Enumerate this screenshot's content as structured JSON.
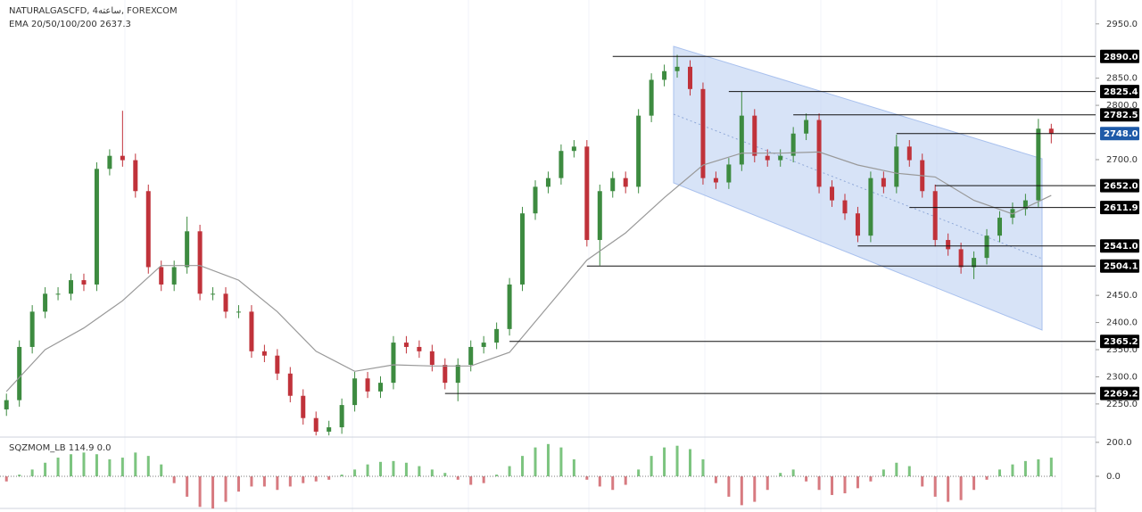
{
  "chart_data": [
    {
      "type": "candlestick",
      "title": "NATURALGASCFD, 4ساعته, FOREXCOM",
      "subtitle": "EMA 20/50/100/200  2637.3",
      "xlim": [
        -0.5,
        82.5
      ],
      "ylim": [
        2189,
        2994
      ],
      "yticks": [
        {
          "value": 2950,
          "label": "2950.0"
        },
        {
          "value": 2850,
          "label": "2850.0"
        },
        {
          "value": 2800,
          "label": "2800.0"
        },
        {
          "value": 2700,
          "label": "2700.0"
        },
        {
          "value": 2450,
          "label": "2450.0"
        },
        {
          "value": 2400,
          "label": "2400.0"
        },
        {
          "value": 2350,
          "label": "2350.0"
        },
        {
          "value": 2300,
          "label": "2300.0"
        },
        {
          "value": 2250,
          "label": "2250.0"
        }
      ],
      "up_color": "#3d8b40",
      "down_color": "#c0323a",
      "open": [
        2240,
        2257,
        2355,
        2420,
        2453,
        2453,
        2478,
        2470,
        2683,
        2707,
        2699,
        2642,
        2502,
        2470,
        2502,
        2568,
        2453,
        2453,
        2420,
        2420,
        2347,
        2339,
        2306,
        2265,
        2224,
        2199,
        2207,
        2248,
        2297,
        2273,
        2289,
        2363,
        2355,
        2347,
        2322,
        2289,
        2322,
        2355,
        2363,
        2388,
        2470,
        2601,
        2650,
        2666,
        2716,
        2724,
        2552,
        2642,
        2666,
        2650,
        2781,
        2847,
        2863,
        2871,
        2830,
        2666,
        2658,
        2691,
        2781,
        2707,
        2699,
        2707,
        2748,
        2773,
        2650,
        2625,
        2601,
        2560,
        2666,
        2650,
        2724,
        2699,
        2642,
        2552,
        2535,
        2502,
        2519,
        2560,
        2593,
        2609,
        2625,
        2757
      ],
      "high": [
        2269,
        2367,
        2432,
        2465,
        2465,
        2490,
        2490,
        2695,
        2719,
        2790,
        2711,
        2654,
        2514,
        2514,
        2595,
        2580,
        2465,
        2465,
        2432,
        2432,
        2359,
        2351,
        2318,
        2277,
        2236,
        2219,
        2260,
        2309,
        2309,
        2301,
        2375,
        2375,
        2367,
        2359,
        2334,
        2334,
        2367,
        2375,
        2400,
        2482,
        2613,
        2662,
        2678,
        2728,
        2736,
        2736,
        2654,
        2678,
        2678,
        2793,
        2859,
        2875,
        2893,
        2883,
        2842,
        2678,
        2703,
        2826,
        2793,
        2719,
        2719,
        2760,
        2785,
        2785,
        2662,
        2637,
        2613,
        2678,
        2678,
        2746,
        2736,
        2711,
        2654,
        2564,
        2547,
        2531,
        2572,
        2605,
        2621,
        2637,
        2775,
        2766
      ],
      "low": [
        2228,
        2245,
        2343,
        2408,
        2441,
        2441,
        2458,
        2458,
        2671,
        2687,
        2630,
        2490,
        2458,
        2458,
        2490,
        2441,
        2441,
        2408,
        2408,
        2335,
        2327,
        2294,
        2253,
        2212,
        2192,
        2192,
        2195,
        2236,
        2261,
        2261,
        2277,
        2343,
        2335,
        2310,
        2277,
        2255,
        2310,
        2343,
        2351,
        2376,
        2458,
        2589,
        2638,
        2654,
        2704,
        2540,
        2505,
        2630,
        2638,
        2638,
        2769,
        2835,
        2851,
        2818,
        2654,
        2646,
        2646,
        2679,
        2695,
        2687,
        2687,
        2695,
        2736,
        2638,
        2613,
        2589,
        2548,
        2548,
        2638,
        2638,
        2687,
        2630,
        2540,
        2523,
        2490,
        2480,
        2507,
        2548,
        2581,
        2597,
        2613,
        2730
      ],
      "close": [
        2257,
        2355,
        2420,
        2453,
        2453,
        2478,
        2470,
        2683,
        2707,
        2699,
        2642,
        2502,
        2470,
        2502,
        2568,
        2453,
        2453,
        2420,
        2420,
        2347,
        2339,
        2306,
        2265,
        2224,
        2199,
        2207,
        2248,
        2297,
        2273,
        2289,
        2363,
        2355,
        2347,
        2322,
        2289,
        2322,
        2355,
        2363,
        2388,
        2470,
        2601,
        2650,
        2666,
        2716,
        2724,
        2552,
        2642,
        2666,
        2650,
        2781,
        2847,
        2863,
        2871,
        2830,
        2666,
        2658,
        2691,
        2781,
        2707,
        2699,
        2707,
        2748,
        2773,
        2650,
        2625,
        2601,
        2560,
        2666,
        2650,
        2724,
        2699,
        2642,
        2552,
        2535,
        2502,
        2519,
        2560,
        2593,
        2609,
        2625,
        2757,
        2748
      ],
      "ema": {
        "color": "#999999",
        "x": [
          0,
          3,
          6,
          9,
          12,
          15,
          18,
          21,
          24,
          27,
          30,
          33,
          36,
          39,
          42,
          45,
          48,
          51,
          54,
          57,
          60,
          63,
          66,
          69,
          72,
          75,
          78,
          81
        ],
        "values": [
          2273,
          2350,
          2390,
          2440,
          2505,
          2505,
          2478,
          2420,
          2347,
          2310,
          2322,
          2320,
          2320,
          2345,
          2430,
          2515,
          2565,
          2630,
          2690,
          2712,
          2712,
          2714,
          2690,
          2675,
          2668,
          2625,
          2600,
          2634
        ]
      },
      "levels": [
        {
          "value": 2890.0,
          "label": "2890.0",
          "x": 47,
          "color": "#000000"
        },
        {
          "value": 2825.4,
          "label": "2825.4",
          "x": 56,
          "color": "#000000"
        },
        {
          "value": 2782.5,
          "label": "2782.5",
          "x": 61,
          "color": "#000000"
        },
        {
          "value": 2748.0,
          "label": "2748.0",
          "x": 69,
          "color": "#1e5aa8"
        },
        {
          "value": 2652.0,
          "label": "2652.0",
          "x": 72,
          "color": "#000000"
        },
        {
          "value": 2611.9,
          "label": "2611.9",
          "x": 70,
          "color": "#000000"
        },
        {
          "value": 2541.0,
          "label": "2541.0",
          "x": 66,
          "color": "#000000"
        },
        {
          "value": 2504.1,
          "label": "2504.1",
          "x": 45,
          "color": "#000000"
        },
        {
          "value": 2365.2,
          "label": "2365.2",
          "x": 39,
          "color": "#000000"
        },
        {
          "value": 2269.2,
          "label": "2269.2",
          "x": 34,
          "color": "#000000"
        }
      ]
    },
    {
      "type": "histogram-indicator",
      "title": "SQZMOM_LB  114.9  0.0",
      "ylim": [
        -189,
        231
      ],
      "yticks": [
        {
          "value": 200,
          "label": "200.0"
        },
        {
          "value": 0,
          "label": "0.0"
        }
      ],
      "pos_color": "#7cc47f",
      "neg_color": "#d77a80",
      "values": [
        -30,
        10,
        40,
        80,
        110,
        130,
        140,
        130,
        100,
        110,
        140,
        120,
        70,
        -40,
        -120,
        -180,
        -190,
        -150,
        -90,
        -60,
        -60,
        -80,
        -60,
        -40,
        -30,
        -20,
        10,
        40,
        70,
        85,
        90,
        80,
        60,
        40,
        20,
        -20,
        -50,
        -40,
        10,
        60,
        120,
        170,
        190,
        170,
        100,
        -20,
        -60,
        -80,
        -50,
        40,
        120,
        170,
        180,
        160,
        100,
        -40,
        -120,
        -170,
        -150,
        -80,
        20,
        40,
        -30,
        -80,
        -110,
        -100,
        -70,
        -30,
        40,
        80,
        60,
        -60,
        -120,
        -150,
        -140,
        -80,
        -20,
        40,
        70,
        90,
        100,
        110
      ]
    }
  ]
}
